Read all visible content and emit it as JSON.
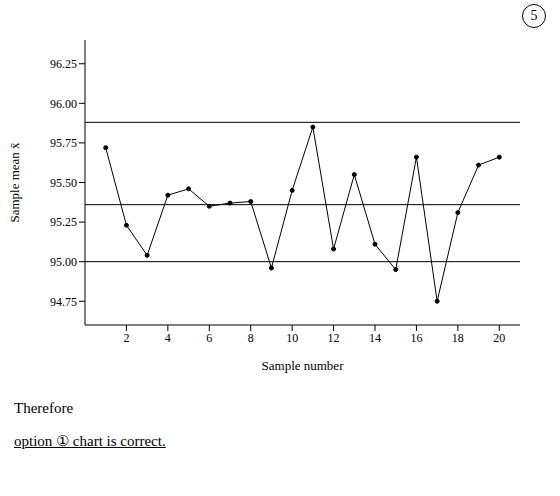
{
  "chart_data": {
    "type": "line",
    "x_label": "Sample number",
    "y_label": "Sample mean x̄",
    "x": [
      1,
      2,
      3,
      4,
      5,
      6,
      7,
      8,
      9,
      10,
      11,
      12,
      13,
      14,
      15,
      16,
      17,
      18,
      19,
      20
    ],
    "values": [
      95.72,
      95.23,
      95.04,
      95.42,
      95.46,
      95.35,
      95.37,
      95.38,
      94.96,
      95.45,
      95.85,
      95.08,
      95.55,
      95.11,
      94.95,
      95.66,
      94.75,
      95.31,
      95.61,
      95.66
    ],
    "color": "#000000",
    "marker": "circle",
    "hlines": [
      95.88,
      95.36,
      95.0
    ],
    "xlim": [
      0,
      21
    ],
    "xticks": [
      2,
      4,
      6,
      8,
      10,
      12,
      14,
      16,
      18,
      20
    ],
    "ylim": [
      94.6,
      96.4
    ],
    "yticks": [
      {
        "value": 94.75,
        "label": "94.75"
      },
      {
        "value": 95,
        "label": "95.00"
      },
      {
        "value": 95.25,
        "label": "95.25"
      },
      {
        "value": 95.5,
        "label": "95.50"
      },
      {
        "value": 95.75,
        "label": "95.75"
      },
      {
        "value": 96,
        "label": "96.00"
      },
      {
        "value": 96.25,
        "label": "96.25"
      }
    ],
    "grid": false,
    "annotations": [
      "5",
      "Therefore",
      "option ① chart is correct."
    ]
  }
}
